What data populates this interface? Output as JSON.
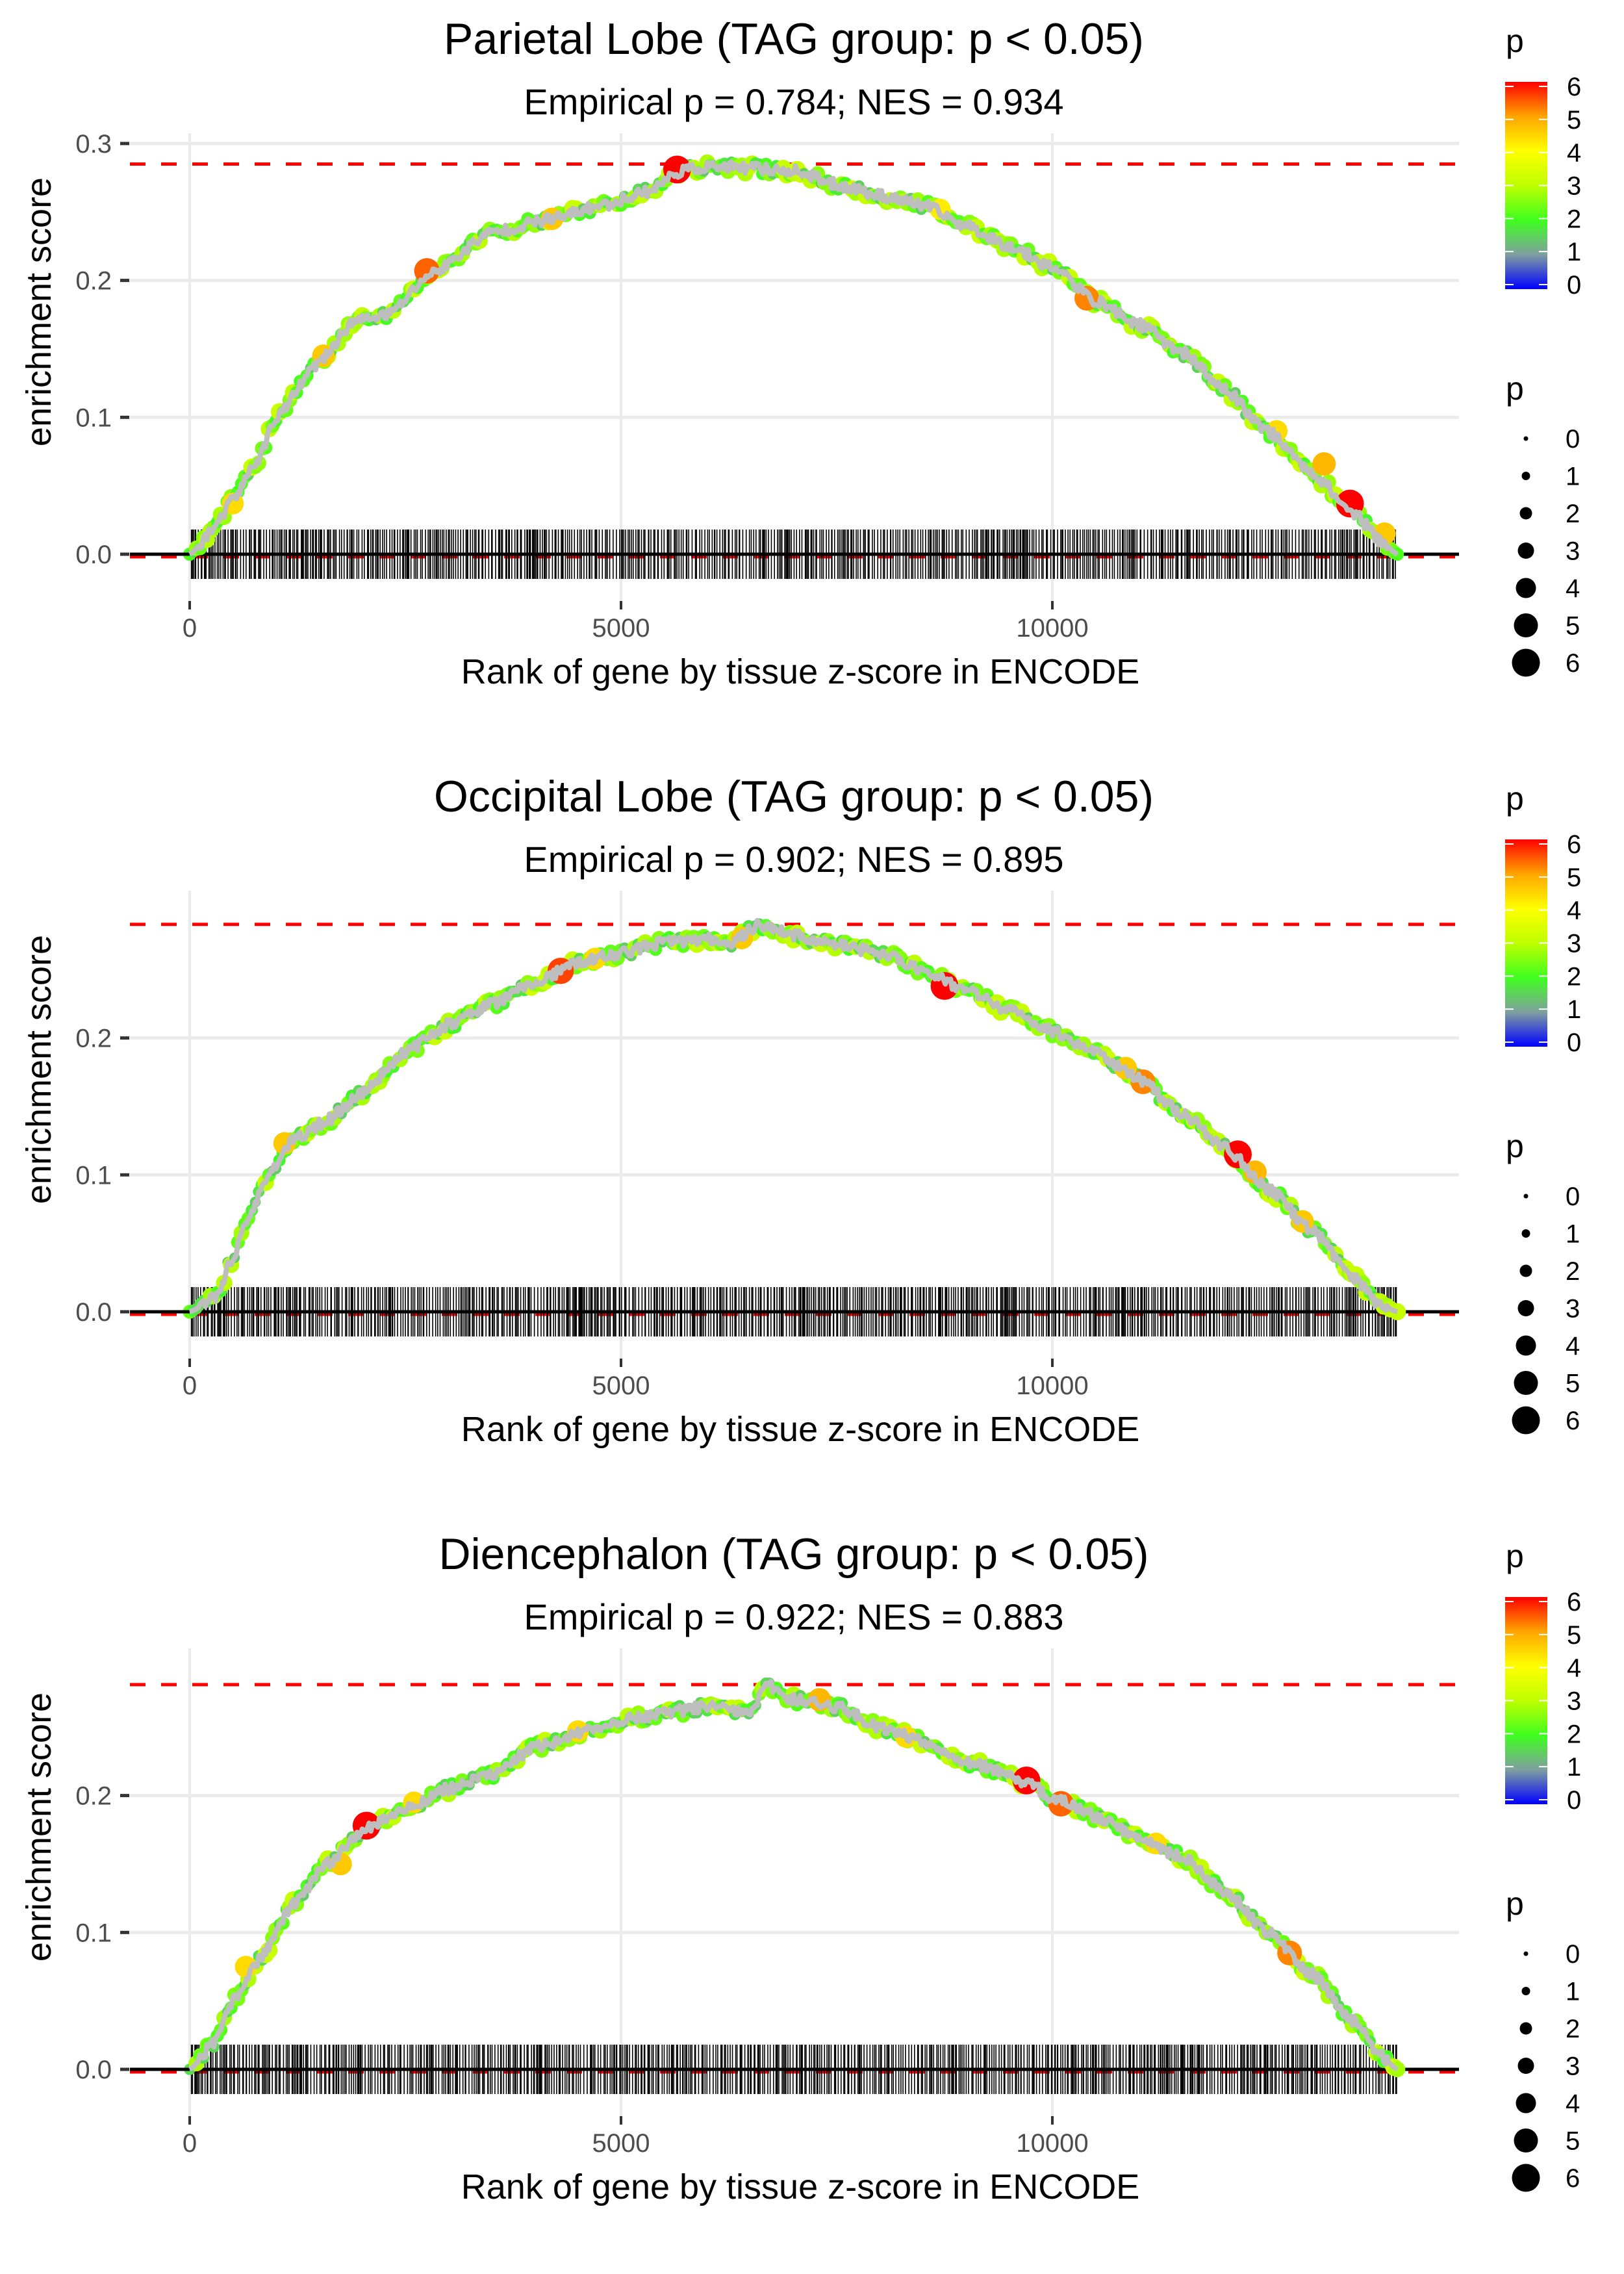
{
  "figure": {
    "colorscale": {
      "stops": [
        {
          "value": 0,
          "color": "#0000FF"
        },
        {
          "value": 1,
          "color": "#7F9F9F"
        },
        {
          "value": 2,
          "color": "#3FFF1F"
        },
        {
          "value": 3,
          "color": "#BFFF00"
        },
        {
          "value": 4,
          "color": "#FFFF00"
        },
        {
          "value": 5,
          "color": "#FFA500"
        },
        {
          "value": 6,
          "color": "#FF0000"
        }
      ]
    },
    "colors": {
      "line": "#BEBEBE",
      "max_es_line": "#FF0000",
      "zero_line": "#000000",
      "rug": "#000000",
      "grid": "#EBEBEB"
    }
  },
  "chart_data": [
    {
      "type": "line",
      "title": "Parietal Lobe (TAG group: p < 0.05)",
      "subtitle": "Empirical p = 0.784; NES = 0.934",
      "xlabel": "Rank of gene by tissue z-score in ENCODE",
      "ylabel": "enrichment score",
      "xlim": [
        -750,
        14800
      ],
      "ylim": [
        -0.025,
        0.31
      ],
      "x_ticks": [
        0,
        5000,
        10000
      ],
      "x_tick_labels": [
        "0",
        "5000",
        "10000"
      ],
      "y_ticks": [
        0.0,
        0.1,
        0.2,
        0.3
      ],
      "y_tick_labels": [
        "0.0",
        "0.1",
        "0.2",
        "0.3"
      ],
      "grid": true,
      "max_es": 0.285,
      "n_genes": 14000,
      "curve": [
        [
          0,
          0
        ],
        [
          300,
          0.02
        ],
        [
          500,
          0.04
        ],
        [
          800,
          0.07
        ],
        [
          1000,
          0.1
        ],
        [
          1500,
          0.14
        ],
        [
          1900,
          0.17
        ],
        [
          2300,
          0.175
        ],
        [
          2800,
          0.205
        ],
        [
          3500,
          0.235
        ],
        [
          4200,
          0.245
        ],
        [
          4800,
          0.255
        ],
        [
          5300,
          0.265
        ],
        [
          5700,
          0.28
        ],
        [
          6000,
          0.283
        ],
        [
          6500,
          0.282
        ],
        [
          7000,
          0.28
        ],
        [
          7500,
          0.27
        ],
        [
          8000,
          0.262
        ],
        [
          8500,
          0.255
        ],
        [
          9000,
          0.24
        ],
        [
          9500,
          0.225
        ],
        [
          10000,
          0.21
        ],
        [
          10500,
          0.185
        ],
        [
          11000,
          0.168
        ],
        [
          11500,
          0.148
        ],
        [
          12000,
          0.12
        ],
        [
          12500,
          0.09
        ],
        [
          13000,
          0.06
        ],
        [
          13500,
          0.03
        ],
        [
          13800,
          0.01
        ],
        [
          14000,
          0
        ]
      ],
      "highlight_points": [
        [
          2750,
          0.207,
          5.4
        ],
        [
          5650,
          0.281,
          6
        ],
        [
          10400,
          0.187,
          5.2
        ],
        [
          13450,
          0.037,
          6
        ],
        [
          1550,
          0.145,
          4.6
        ],
        [
          500,
          0.037,
          4.4
        ],
        [
          4200,
          0.245,
          4.6
        ],
        [
          8700,
          0.252,
          4.2
        ],
        [
          12600,
          0.09,
          4.4
        ],
        [
          13150,
          0.066,
          4.8
        ],
        [
          13850,
          0.015,
          4.6
        ]
      ],
      "rug_seed": 11,
      "legend_colorbar": {
        "title": "p",
        "ticks": [
          "0",
          "1",
          "2",
          "3",
          "4",
          "5",
          "6"
        ]
      },
      "legend_size": {
        "title": "p",
        "items": [
          "0",
          "1",
          "2",
          "3",
          "4",
          "5",
          "6"
        ]
      }
    },
    {
      "type": "line",
      "title": "Occipital Lobe (TAG group: p < 0.05)",
      "subtitle": "Empirical p = 0.902; NES = 0.895",
      "xlabel": "Rank of gene by tissue z-score in ENCODE",
      "ylabel": "enrichment score",
      "xlim": [
        -750,
        14800
      ],
      "ylim": [
        -0.025,
        0.295
      ],
      "x_ticks": [
        0,
        5000,
        10000
      ],
      "x_tick_labels": [
        "0",
        "5000",
        "10000"
      ],
      "y_ticks": [
        0.0,
        0.1,
        0.2
      ],
      "y_tick_labels": [
        "0.0",
        "0.1",
        "0.2"
      ],
      "grid": true,
      "max_es": 0.283,
      "n_genes": 14000,
      "curve": [
        [
          0,
          0
        ],
        [
          300,
          0.01
        ],
        [
          500,
          0.04
        ],
        [
          700,
          0.07
        ],
        [
          900,
          0.1
        ],
        [
          1200,
          0.125
        ],
        [
          1600,
          0.14
        ],
        [
          2000,
          0.16
        ],
        [
          2500,
          0.19
        ],
        [
          3000,
          0.21
        ],
        [
          3500,
          0.225
        ],
        [
          4000,
          0.24
        ],
        [
          4500,
          0.255
        ],
        [
          5000,
          0.262
        ],
        [
          5500,
          0.27
        ],
        [
          6000,
          0.272
        ],
        [
          6300,
          0.27
        ],
        [
          6600,
          0.283
        ],
        [
          7000,
          0.275
        ],
        [
          7500,
          0.268
        ],
        [
          8000,
          0.262
        ],
        [
          8500,
          0.25
        ],
        [
          9000,
          0.235
        ],
        [
          9500,
          0.22
        ],
        [
          10000,
          0.205
        ],
        [
          10500,
          0.19
        ],
        [
          11000,
          0.17
        ],
        [
          11500,
          0.145
        ],
        [
          12000,
          0.12
        ],
        [
          12500,
          0.09
        ],
        [
          13000,
          0.06
        ],
        [
          13500,
          0.025
        ],
        [
          13800,
          0.005
        ],
        [
          14000,
          0
        ]
      ],
      "highlight_points": [
        [
          4300,
          0.249,
          5.6
        ],
        [
          8750,
          0.238,
          6
        ],
        [
          11050,
          0.168,
          5.2
        ],
        [
          12150,
          0.115,
          6
        ],
        [
          1100,
          0.123,
          4.6
        ],
        [
          4700,
          0.258,
          4.4
        ],
        [
          10850,
          0.178,
          4.6
        ],
        [
          12350,
          0.102,
          4.8
        ],
        [
          12900,
          0.066,
          4.6
        ],
        [
          6400,
          0.273,
          4.6
        ]
      ],
      "rug_seed": 23,
      "legend_colorbar": {
        "title": "p",
        "ticks": [
          "0",
          "1",
          "2",
          "3",
          "4",
          "5",
          "6"
        ]
      },
      "legend_size": {
        "title": "p",
        "items": [
          "0",
          "1",
          "2",
          "3",
          "4",
          "5",
          "6"
        ]
      }
    },
    {
      "type": "line",
      "title": "Diencephalon (TAG group: p < 0.05)",
      "subtitle": "Empirical p = 0.922; NES = 0.883",
      "xlabel": "Rank of gene by tissue z-score in ENCODE",
      "ylabel": "enrichment score",
      "xlim": [
        -750,
        14800
      ],
      "ylim": [
        -0.025,
        0.295
      ],
      "x_ticks": [
        0,
        5000,
        10000
      ],
      "x_tick_labels": [
        "0",
        "5000",
        "10000"
      ],
      "y_ticks": [
        0.0,
        0.1,
        0.2
      ],
      "y_tick_labels": [
        "0.0",
        "0.1",
        "0.2"
      ],
      "grid": true,
      "max_es": 0.281,
      "n_genes": 14000,
      "curve": [
        [
          0,
          0
        ],
        [
          300,
          0.02
        ],
        [
          500,
          0.05
        ],
        [
          800,
          0.08
        ],
        [
          1200,
          0.12
        ],
        [
          1600,
          0.15
        ],
        [
          2000,
          0.175
        ],
        [
          2500,
          0.19
        ],
        [
          3000,
          0.205
        ],
        [
          3500,
          0.215
        ],
        [
          4000,
          0.235
        ],
        [
          4500,
          0.245
        ],
        [
          5000,
          0.255
        ],
        [
          5500,
          0.26
        ],
        [
          6000,
          0.265
        ],
        [
          6500,
          0.26
        ],
        [
          6700,
          0.281
        ],
        [
          7000,
          0.27
        ],
        [
          7500,
          0.265
        ],
        [
          8000,
          0.25
        ],
        [
          8500,
          0.24
        ],
        [
          9000,
          0.225
        ],
        [
          9700,
          0.21
        ],
        [
          10000,
          0.198
        ],
        [
          10500,
          0.185
        ],
        [
          11000,
          0.17
        ],
        [
          11500,
          0.155
        ],
        [
          12000,
          0.13
        ],
        [
          12500,
          0.1
        ],
        [
          13000,
          0.07
        ],
        [
          13500,
          0.035
        ],
        [
          13800,
          0.01
        ],
        [
          14000,
          0
        ]
      ],
      "highlight_points": [
        [
          2050,
          0.178,
          6
        ],
        [
          9700,
          0.211,
          6
        ],
        [
          10100,
          0.194,
          5.4
        ],
        [
          12750,
          0.085,
          5.2
        ],
        [
          1750,
          0.15,
          4.6
        ],
        [
          650,
          0.075,
          4.4
        ],
        [
          2600,
          0.195,
          4.4
        ],
        [
          7300,
          0.27,
          4.8
        ],
        [
          8300,
          0.243,
          4.4
        ],
        [
          11200,
          0.165,
          4.4
        ],
        [
          4500,
          0.247,
          4.4
        ]
      ],
      "rug_seed": 37,
      "legend_colorbar": {
        "title": "p",
        "ticks": [
          "0",
          "1",
          "2",
          "3",
          "4",
          "5",
          "6"
        ]
      },
      "legend_size": {
        "title": "p",
        "items": [
          "0",
          "1",
          "2",
          "3",
          "4",
          "5",
          "6"
        ]
      }
    }
  ]
}
